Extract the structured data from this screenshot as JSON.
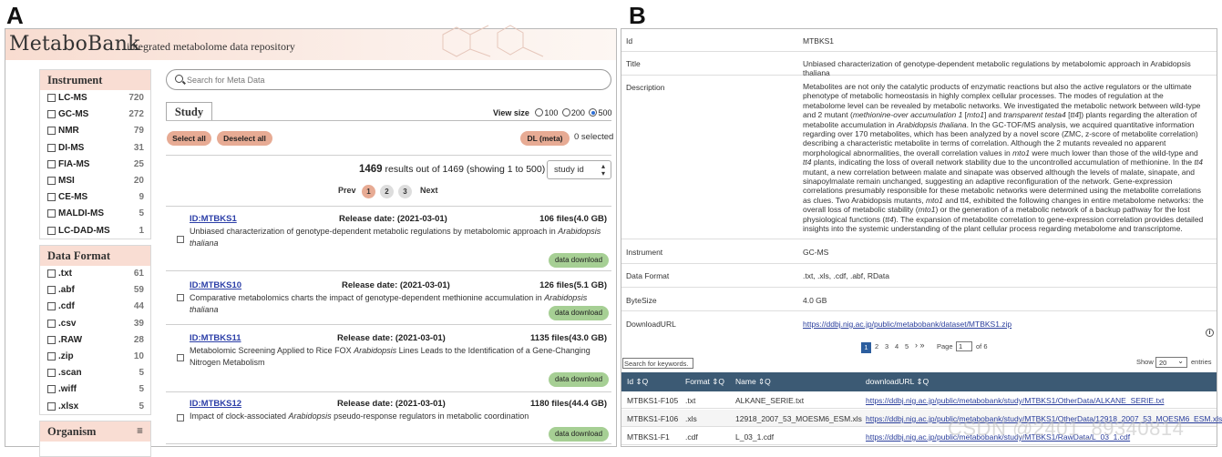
{
  "labels": {
    "a": "A",
    "b": "B"
  },
  "panel_a": {
    "logo": "MetaboBank",
    "tagline": "integrated metabolome data repository",
    "instrument": {
      "title": "Instrument",
      "items": [
        {
          "name": "LC-MS",
          "count": "720"
        },
        {
          "name": "GC-MS",
          "count": "272"
        },
        {
          "name": "NMR",
          "count": "79"
        },
        {
          "name": "DI-MS",
          "count": "31"
        },
        {
          "name": "FIA-MS",
          "count": "25"
        },
        {
          "name": "MSI",
          "count": "20"
        },
        {
          "name": "CE-MS",
          "count": "9"
        },
        {
          "name": "MALDI-MS",
          "count": "5"
        },
        {
          "name": "LC-DAD-MS",
          "count": "1"
        }
      ]
    },
    "data_format": {
      "title": "Data Format",
      "items": [
        {
          "name": ".txt",
          "count": "61"
        },
        {
          "name": ".abf",
          "count": "59"
        },
        {
          "name": ".cdf",
          "count": "44"
        },
        {
          "name": ".csv",
          "count": "39"
        },
        {
          "name": ".RAW",
          "count": "28"
        },
        {
          "name": ".zip",
          "count": "10"
        },
        {
          "name": ".scan",
          "count": "5"
        },
        {
          "name": ".wiff",
          "count": "5"
        },
        {
          "name": ".xlsx",
          "count": "5"
        }
      ]
    },
    "organism": {
      "title": "Organism",
      "menu_icon": "≡"
    },
    "search_placeholder": "Search for Meta Data",
    "tab_study": "Study",
    "view_size": {
      "label": "View size",
      "options": [
        "100",
        "200",
        "500"
      ],
      "selected": "500"
    },
    "select_all": "Select all",
    "deselect_all": "Deselect all",
    "dl_meta": "DL (meta)",
    "selected": "0 selected",
    "results": {
      "count": "1469",
      "rest": "results out of 1469 (showing 1 to 500)"
    },
    "sort": "study id",
    "pager": {
      "prev": "Prev",
      "pages": [
        "1",
        "2",
        "3"
      ],
      "next": "Next"
    },
    "entries": [
      {
        "id": "ID:MTBKS1",
        "release": "Release date: (2021-03-01)",
        "files": "106 files(4.0 GB)",
        "desc": "Unbiased characterization of genotype-dependent metabolic regulations by metabolomic approach in <i>Arabidopsis thaliana</i>",
        "download": "data download"
      },
      {
        "id": "ID:MTBKS10",
        "release": "Release date: (2021-03-01)",
        "files": "126 files(5.1 GB)",
        "desc": "Comparative metabolomics charts the impact of genotype-dependent methionine accumulation in <i>Arabidopsis thaliana</i>",
        "download": "data download"
      },
      {
        "id": "ID:MTBKS11",
        "release": "Release date: (2021-03-01)",
        "files": "1135 files(43.0 GB)",
        "desc": "Metabolomic Screening Applied to Rice FOX <i>Arabidopsis</i> Lines Leads to the Identification of a Gene-Changing Nitrogen Metabolism",
        "download": "data download"
      },
      {
        "id": "ID:MTBKS12",
        "release": "Release date: (2021-03-01)",
        "files": "1180 files(44.4 GB)",
        "desc": "Impact of clock-associated <i>Arabidopsis</i> pseudo-response regulators in metabolic coordination",
        "download": "data download"
      }
    ]
  },
  "panel_b": {
    "rows": [
      {
        "key": "Id",
        "value": "MTBKS1"
      },
      {
        "key": "Title",
        "value": "Unbiased characterization of genotype-dependent metabolic regulations by metabolomic approach in Arabidopsis thaliana"
      },
      {
        "key": "Description",
        "value": "Metabolites are not only the catalytic products of enzymatic reactions but also the active regulators or the ultimate phenotype of metabolic homeostasis in highly complex cellular processes. The modes of regulation at the metabolome level can be revealed by metabolic networks. We investigated the metabolic network between wild-type and 2 mutant (<i>methionine-over accumulation 1</i> [<i>mto1</i>] and <i>transparent testa4</i> [<i>tt4</i>]) plants regarding the alteration of metabolite accumulation in <i>Arabidopsis thaliana</i>. In the GC-TOF/MS analysis, we acquired quantitative information regarding over 170 metabolites, which has been analyzed by a novel score (ZMC, z-score of metabolite correlation) describing a characteristic metabolite in terms of correlation. Although the 2 mutants revealed no apparent morphological abnormalities, the overall correlation values in <i>mto1</i> were much lower than those of the wild-type and <i>tt4</i> plants, indicating the loss of overall network stability due to the uncontrolled accumulation of methionine. In the <i>tt4</i> mutant, a new correlation between malate and sinapate was observed although the levels of malate, sinapate, and sinapoylmalate remain unchanged, suggesting an adaptive reconfiguration of the network. Gene-expression correlations presumably responsible for these metabolic networks were determined using the metabolite correlations as clues. Two Arabidopsis mutants, <i>mto1</i> and tt4, exhibited the following changes in entire metabolome networks: the overall loss of metabolic stability (<i>mto1</i>) or the generation of a metabolic network of a backup pathway for the lost physiological functions (<i>tt4</i>). The expansion of metabolite correlation to gene-expression correlation provides detailed insights into the systemic understanding of the plant cellular process regarding metabolome and transcriptome."
      },
      {
        "key": "Instrument",
        "value": "GC-MS"
      },
      {
        "key": "Data Format",
        "value": ".txt, .xls, .cdf, .abf, RData"
      },
      {
        "key": "ByteSize",
        "value": "4.0 GB"
      },
      {
        "key": "DownloadURL",
        "value": "https://ddbj.nig.ac.jp/public/metabobank/dataset/MTBKS1.zip"
      }
    ],
    "info_icon": "i",
    "pagination": {
      "pages": [
        "1",
        "2",
        "3",
        "4",
        "5"
      ],
      "arrows": "› »",
      "page_label": "Page",
      "page_value": "1",
      "of": "of 6"
    },
    "search_keywords": "Search for keywords.",
    "show": {
      "label": "Show",
      "value": "20",
      "suffix": "entries"
    },
    "table": {
      "headers": [
        "Id ⇕Q",
        "Format ⇕Q",
        "Name ⇕Q",
        "downloadURL ⇕Q"
      ],
      "rows": [
        {
          "id": "MTBKS1-F105",
          "format": ".txt",
          "name": "ALKANE_SERIE.txt",
          "url": "https://ddbj.nig.ac.jp/public/metabobank/study/MTBKS1/OtherData/ALKANE_SERIE.txt"
        },
        {
          "id": "MTBKS1-F106",
          "format": ".xls",
          "name": "12918_2007_53_MOESM6_ESM.xls",
          "url": "https://ddbj.nig.ac.jp/public/metabobank/study/MTBKS1/OtherData/12918_2007_53_MOESM6_ESM.xls"
        },
        {
          "id": "MTBKS1-F1",
          "format": ".cdf",
          "name": "L_03_1.cdf",
          "url": "https://ddbj.nig.ac.jp/public/metabobank/study/MTBKS1/RawData/L_03_1.cdf"
        }
      ]
    }
  },
  "watermark": "CSDN @2401_89340814"
}
